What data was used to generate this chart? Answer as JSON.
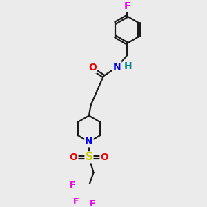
{
  "bg_color": "#ebebeb",
  "bond_color": "#1a1a1a",
  "bond_width": 1.6,
  "atom_colors": {
    "C": "#1a1a1a",
    "N": "#0000ee",
    "O": "#ee0000",
    "S": "#cccc00",
    "F": "#ee00ee",
    "H": "#008888"
  },
  "font_size": 9,
  "fig_size": [
    3.0,
    3.0
  ],
  "dpi": 100
}
